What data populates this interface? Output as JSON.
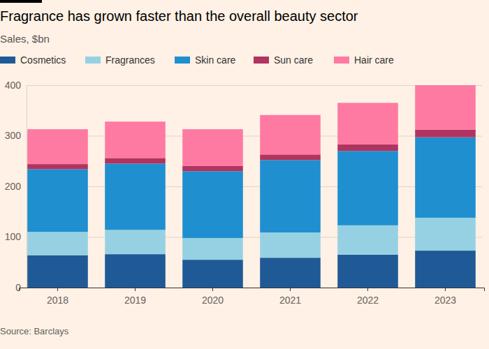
{
  "chart_data": {
    "type": "bar",
    "stacked": true,
    "title": "Fragrance has grown faster than the overall beauty sector",
    "subtitle": "Sales, $bn",
    "source": "Source: Barclays",
    "categories": [
      "2018",
      "2019",
      "2020",
      "2021",
      "2022",
      "2023"
    ],
    "series": [
      {
        "name": "Cosmetics",
        "color": "#1f5a96",
        "values": [
          64,
          66,
          55,
          59,
          65,
          73
        ]
      },
      {
        "name": "Fragrances",
        "color": "#96d1e3",
        "values": [
          46,
          48,
          43,
          50,
          58,
          65
        ]
      },
      {
        "name": "Skin care",
        "color": "#1f8fd0",
        "values": [
          124,
          131,
          132,
          143,
          147,
          159
        ]
      },
      {
        "name": "Sun care",
        "color": "#b0345f",
        "values": [
          10,
          11,
          10,
          11,
          13,
          15
        ]
      },
      {
        "name": "Hair care",
        "color": "#ff7aa2",
        "values": [
          69,
          72,
          73,
          78,
          82,
          88
        ]
      }
    ],
    "ylim": [
      0,
      400
    ],
    "yticks": [
      0,
      100,
      200,
      300,
      400
    ],
    "grid": true,
    "legend": "top"
  }
}
